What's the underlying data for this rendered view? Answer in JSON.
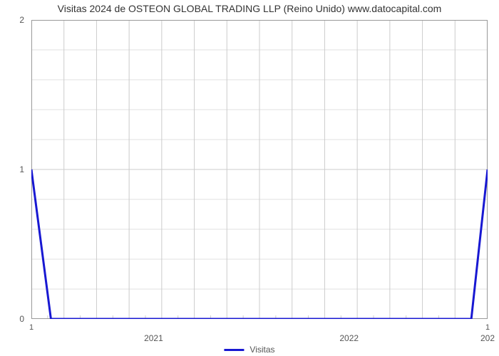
{
  "chart": {
    "type": "line",
    "title": "Visitas 2024 de OSTEON GLOBAL TRADING LLP (Reino Unido) www.datocapital.com",
    "title_fontsize": 14,
    "title_color": "#333333",
    "background_color": "#ffffff",
    "plot_border_color": "#999999",
    "grid_color": "#cccccc",
    "grid_minor_color": "#e0e0e0",
    "line_color": "#1818d2",
    "line_width": 3,
    "y_axis": {
      "min": 0,
      "max": 2,
      "ticks": [
        {
          "value": 0,
          "label": "0"
        },
        {
          "value": 1,
          "label": "1"
        },
        {
          "value": 2,
          "label": "2"
        }
      ],
      "minor_ticks_per_interval": 5,
      "label_fontsize": 12,
      "label_color": "#555555"
    },
    "x_axis": {
      "min": 0,
      "max": 28,
      "minor_bottom_labels": [
        {
          "pos": 0,
          "label": "1"
        },
        {
          "pos": 28,
          "label": "1"
        }
      ],
      "major_labels": [
        {
          "pos": 7.5,
          "label": "2021"
        },
        {
          "pos": 19.5,
          "label": "2022"
        },
        {
          "pos": 28,
          "label": "202"
        }
      ],
      "major_gridlines": [
        0,
        2,
        4,
        6,
        8,
        10,
        12,
        14,
        16,
        18,
        20,
        22,
        24,
        26,
        28
      ],
      "minor_ticks": [
        1,
        3,
        5,
        7,
        9,
        11,
        13,
        15,
        17,
        19,
        21,
        23,
        25,
        27
      ],
      "label_fontsize": 12,
      "label_color": "#555555"
    },
    "series": {
      "name": "Visitas",
      "points": [
        {
          "x": 0,
          "y": 1
        },
        {
          "x": 1.2,
          "y": 0
        },
        {
          "x": 27,
          "y": 0
        },
        {
          "x": 28,
          "y": 1
        }
      ]
    },
    "legend": {
      "label": "Visitas",
      "color": "#1818d2",
      "fontsize": 12
    }
  }
}
